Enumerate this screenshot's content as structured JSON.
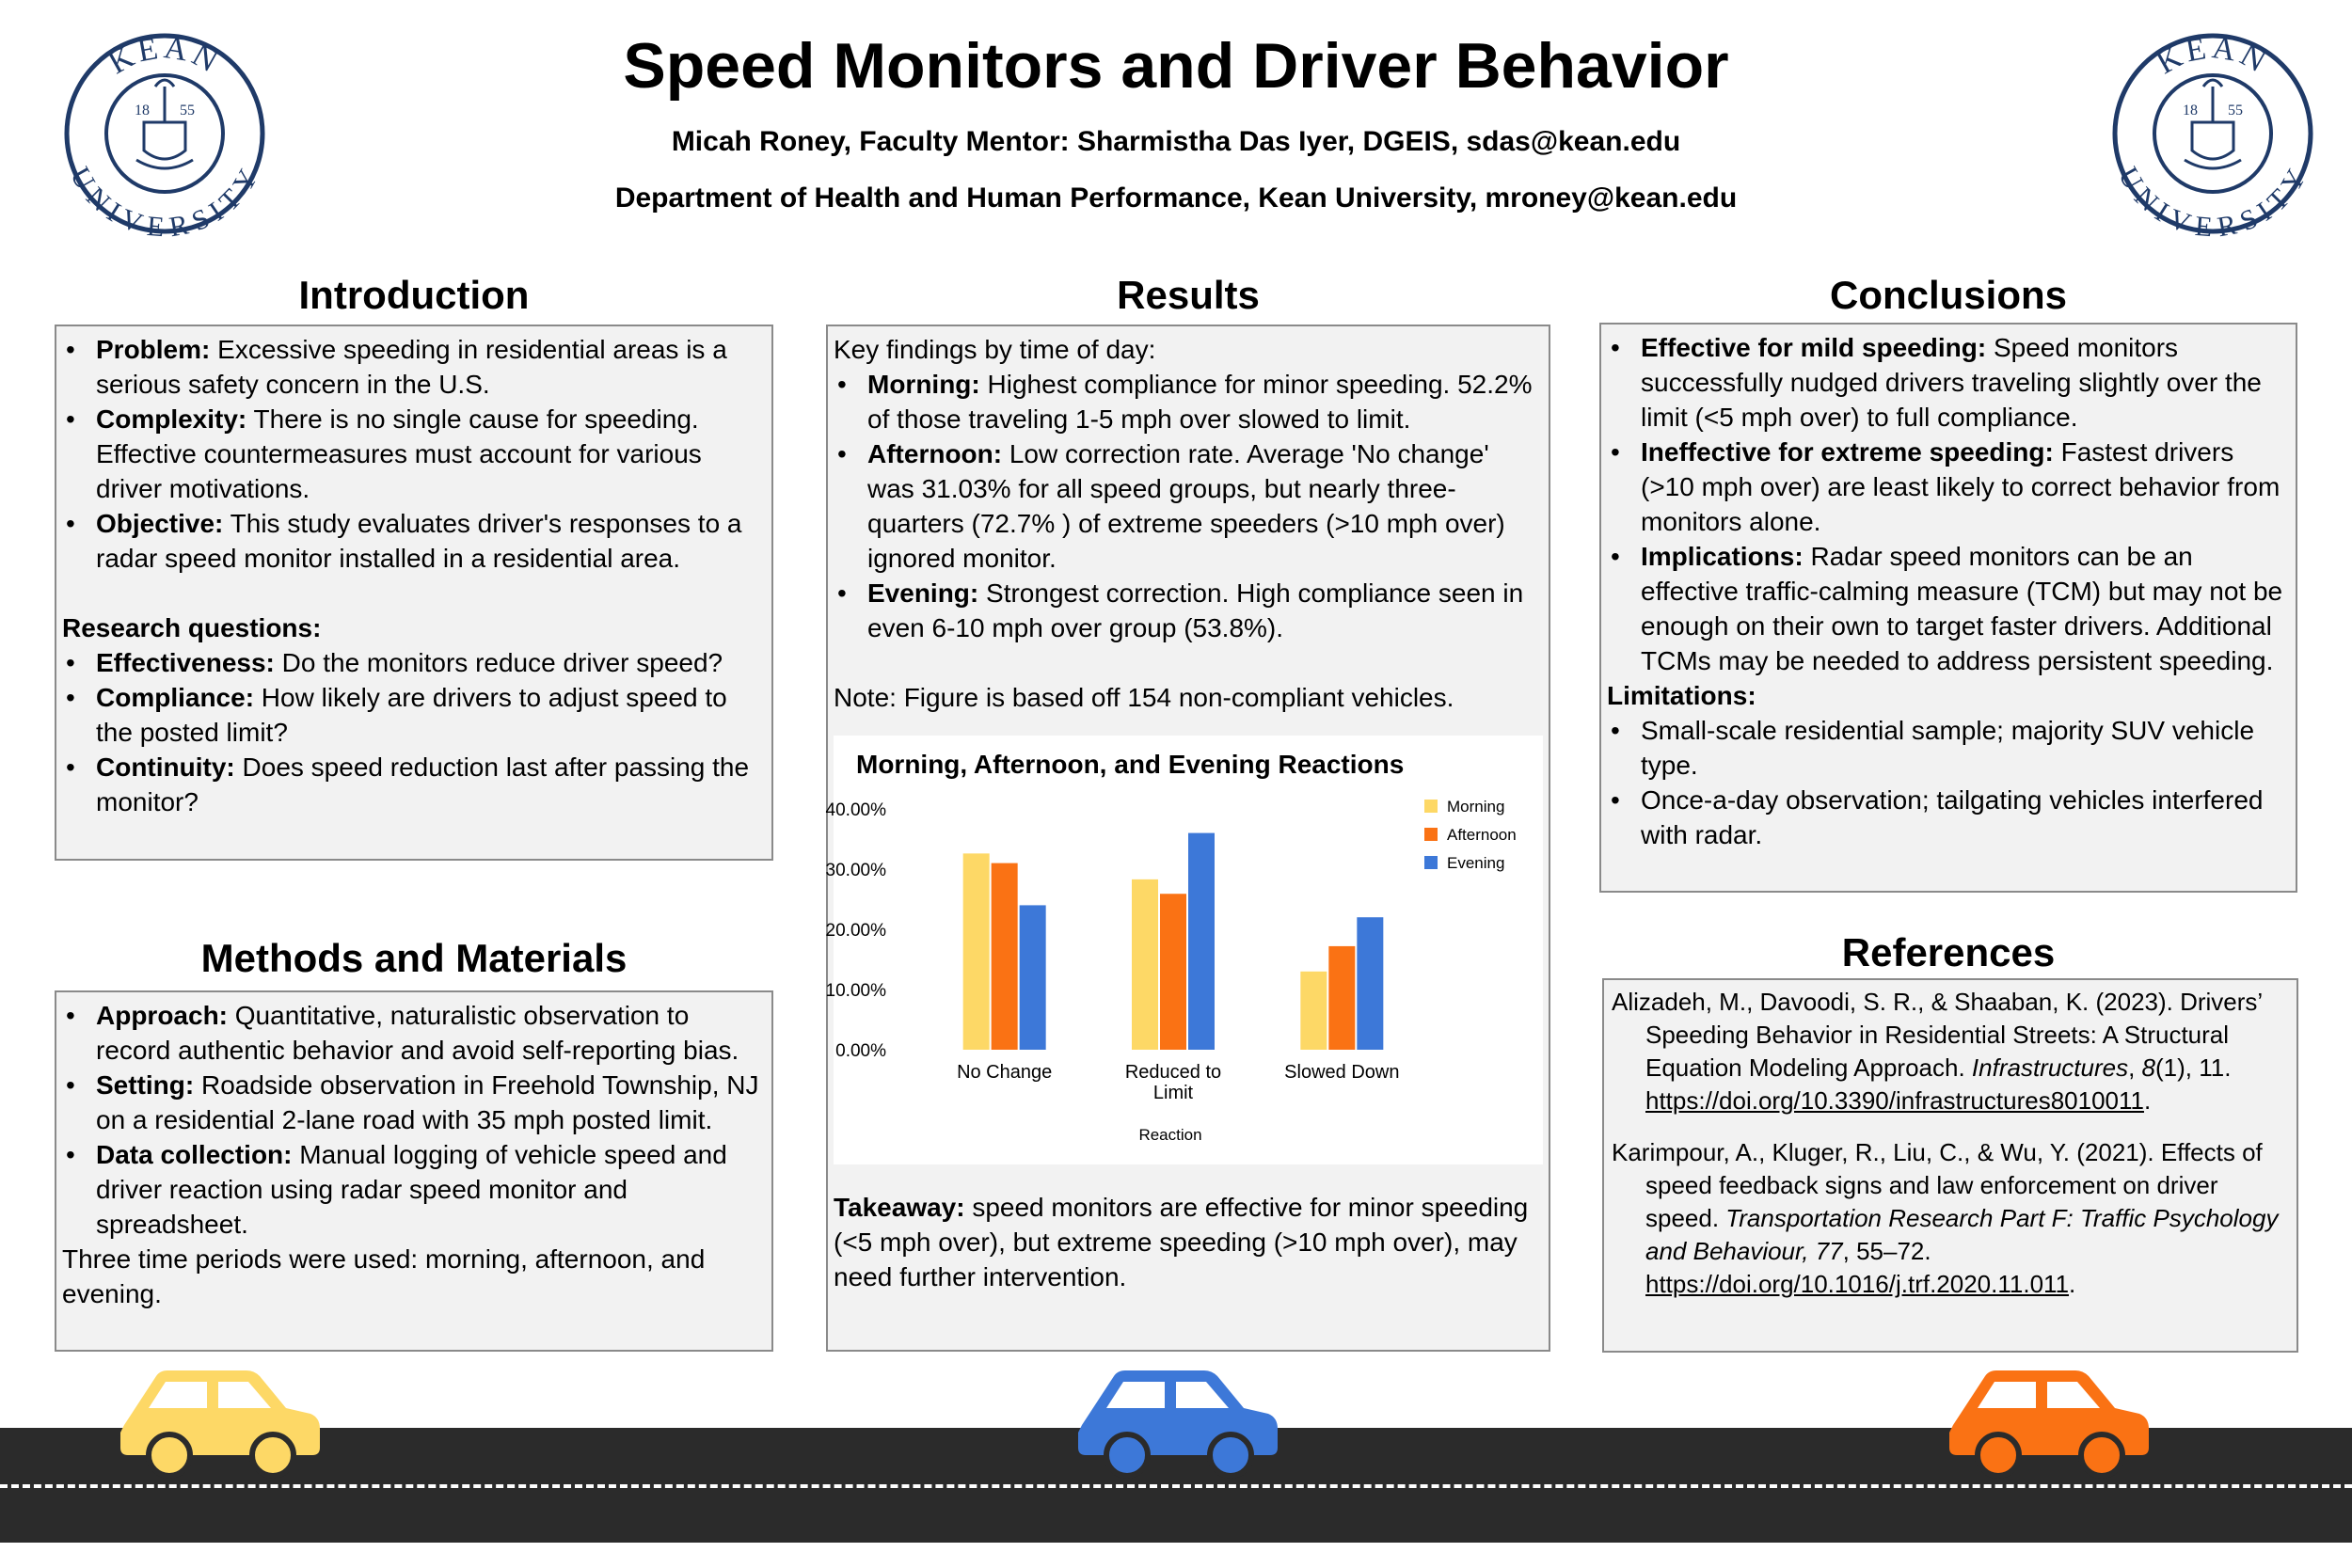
{
  "header": {
    "title": "Speed Monitors and Driver Behavior",
    "authors": "Micah Roney, Faculty Mentor: Sharmistha Das Iyer, DGEIS, sdas@kean.edu",
    "affiliation": "Department of Health and Human Performance, Kean University, mroney@kean.edu",
    "logo": {
      "top_text": "KEAN",
      "bottom_text": "UNIVERSITY",
      "year_left": "18",
      "year_right": "55",
      "color": "#1f3a68"
    }
  },
  "introduction": {
    "heading": "Introduction",
    "items": [
      {
        "label": "Problem:",
        "text": " Excessive speeding in residential areas is a serious safety concern in the U.S."
      },
      {
        "label": "Complexity:",
        "text": " There is no single cause for speeding. Effective countermeasures must account for various driver motivations."
      },
      {
        "label": "Objective:",
        "text": " This study evaluates driver's responses to a radar speed monitor installed in a residential area."
      }
    ],
    "rq_heading": "Research questions:",
    "rq_items": [
      {
        "label": "Effectiveness:",
        "text": " Do the monitors reduce driver speed?"
      },
      {
        "label": "Compliance:",
        "text": " How likely are drivers to adjust speed to the posted limit?"
      },
      {
        "label": "Continuity:",
        "text": " Does speed reduction last after passing the monitor?"
      }
    ]
  },
  "methods": {
    "heading": "Methods and Materials",
    "items": [
      {
        "label": "Approach:",
        "text": " Quantitative, naturalistic observation to record authentic behavior and avoid self-reporting bias."
      },
      {
        "label": "Setting:",
        "text": " Roadside observation in Freehold Township, NJ on a residential 2-lane road with 35 mph posted limit."
      },
      {
        "label": "Data collection:",
        "text": " Manual logging of vehicle speed and driver reaction using radar speed monitor and spreadsheet."
      }
    ],
    "closing": "Three time periods were used: morning, afternoon, and evening."
  },
  "results": {
    "heading": "Results",
    "intro": "Key findings by time of day:",
    "items": [
      {
        "label": "Morning:",
        "text": " Highest compliance for minor speeding. 52.2% of those traveling 1-5 mph over slowed to limit."
      },
      {
        "label": "Afternoon:",
        "text": " Low correction rate. Average 'No change' was 31.03% for all speed groups, but nearly three-quarters (72.7% ) of extreme speeders (>10 mph over) ignored monitor."
      },
      {
        "label": "Evening:",
        "text": " Strongest correction. High compliance seen in even 6-10 mph over group (53.8%)."
      }
    ],
    "note": "Note: Figure is based off 154 non-compliant vehicles.",
    "takeaway_label": "Takeaway:",
    "takeaway_text": " speed monitors are effective for minor speeding (<5 mph over), but extreme speeding (>10 mph over), may need further intervention."
  },
  "chart_data": {
    "type": "bar",
    "title": "Morning, Afternoon, and Evening Reactions",
    "xlabel": "Reaction",
    "ylabel": "",
    "categories": [
      "No Change",
      "Reduced to Limit",
      "Slowed Down"
    ],
    "category_lines": [
      [
        "No Change"
      ],
      [
        "Reduced to",
        "Limit"
      ],
      [
        "Slowed Down"
      ]
    ],
    "series": [
      {
        "name": "Morning",
        "color": "#fdd866",
        "values": [
          32.6,
          28.3,
          13.0
        ]
      },
      {
        "name": "Afternoon",
        "color": "#fa7214",
        "values": [
          31.0,
          25.9,
          17.2
        ]
      },
      {
        "name": "Evening",
        "color": "#3d78d8",
        "values": [
          24.0,
          36.0,
          22.0
        ]
      }
    ],
    "y_ticks": [
      "0.00%",
      "10.00%",
      "20.00%",
      "30.00%",
      "40.00%"
    ],
    "ylim": [
      0,
      40
    ],
    "grid": false,
    "legend_position": "right"
  },
  "conclusions": {
    "heading": "Conclusions",
    "items": [
      {
        "label": "Effective for mild speeding:",
        "text": " Speed monitors successfully nudged drivers traveling slightly over the limit (<5 mph over) to full compliance."
      },
      {
        "label": "Ineffective for extreme speeding:",
        "text": " Fastest drivers (>10 mph over) are least likely to correct behavior from monitors alone."
      },
      {
        "label": "Implications:",
        "text": " Radar speed monitors can be an effective traffic-calming measure (TCM) but may not be enough on their own to target faster drivers. Additional TCMs may be needed to address persistent speeding."
      }
    ],
    "limitations_heading": "Limitations:",
    "limitations": [
      "Small-scale residential sample; majority SUV vehicle type.",
      "Once-a-day observation; tailgating vehicles interfered with radar."
    ]
  },
  "references": {
    "heading": "References",
    "items": [
      {
        "pre": "Alizadeh, M., Davoodi, S. R., & Shaaban, K. (2023). Drivers’ Speeding Behavior in Residential Streets: A Structural Equation Modeling Approach. ",
        "journal": "Infrastructures",
        "mid": ", ",
        "volume": "8",
        "post": "(1), 11. ",
        "link": "https://doi.org/10.3390/infrastructures8010011",
        "end": "."
      },
      {
        "pre": "Karimpour, A., Kluger, R., Liu, C., & Wu, Y. (2021). Effects of speed feedback signs and law enforcement on driver speed. ",
        "journal": "Transportation Research Part F: Traffic Psychology and Behaviour, 77",
        "mid": "",
        "volume": "",
        "post": ", 55–72. ",
        "link": "https://doi.org/10.1016/j.trf.2020.11.011",
        "end": "."
      }
    ]
  },
  "cars": {
    "left_color": "#fdd866",
    "center_color": "#3d78d8",
    "right_color": "#fa7214"
  }
}
